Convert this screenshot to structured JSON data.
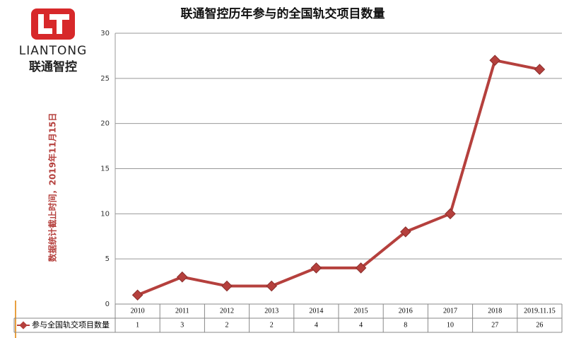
{
  "logo": {
    "name": "LIANTONG",
    "chinese": "联通智控"
  },
  "chart_data": {
    "type": "line",
    "title": "联通智控历年参与的全国轨交项目数量",
    "y_label": "数据统计截止时间，2019年11月15日",
    "categories": [
      "2010",
      "2011",
      "2012",
      "2013",
      "2014",
      "2015",
      "2016",
      "2017",
      "2018",
      "2019.11.15"
    ],
    "series": [
      {
        "name": "参与全国轨交项目数量",
        "color": "#b5403d",
        "values": [
          1,
          3,
          2,
          2,
          4,
          4,
          8,
          10,
          27,
          26
        ]
      }
    ],
    "ylim": [
      0,
      30
    ],
    "yticks": [
      0,
      5,
      10,
      15,
      20,
      25,
      30
    ],
    "grid": true
  }
}
